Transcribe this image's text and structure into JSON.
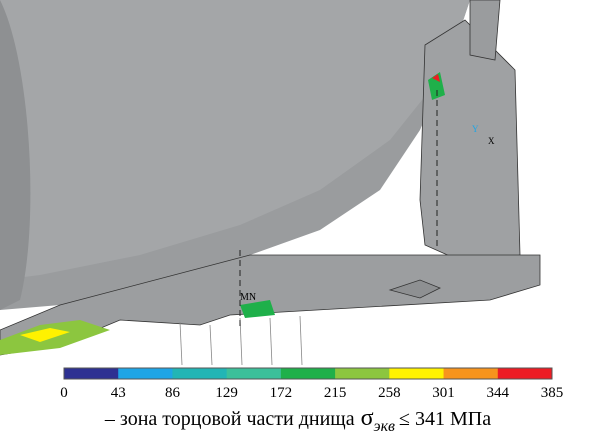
{
  "model": {
    "min_label": "MN",
    "axis_labels": [
      "Y",
      "X"
    ]
  },
  "legend": {
    "ticks": [
      0,
      43,
      86,
      129,
      172,
      215,
      258,
      301,
      344,
      385
    ],
    "colors": [
      "#2e3192",
      "#1ea5e6",
      "#22b5b5",
      "#3cc09a",
      "#1fb04a",
      "#8cc63f",
      "#fff200",
      "#f7941d",
      "#ed1c24"
    ]
  },
  "caption": {
    "text": "– зона торцовой части днища",
    "symbol": "σ",
    "subscript": "экв",
    "condition": "≤ 341 МПа"
  }
}
